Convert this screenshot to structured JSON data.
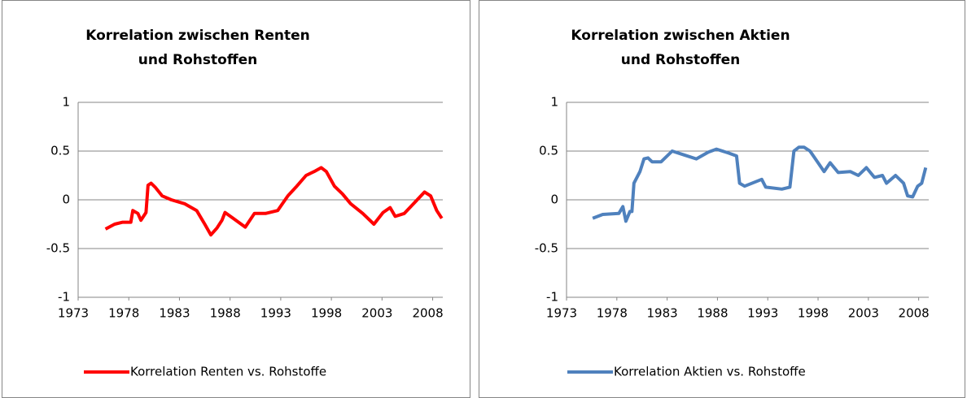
{
  "chart_data": [
    {
      "type": "line",
      "title": "Korrelation zwischen Renten und Rohstoffen",
      "x": [
        1975.7,
        1976.6,
        1977.4,
        1978.2,
        1978.4,
        1978.9,
        1979.2,
        1979.7,
        1979.9,
        1980.2,
        1980.6,
        1981.3,
        1982.2,
        1983.5,
        1984.7,
        1985.5,
        1986.1,
        1986.7,
        1987.2,
        1987.5,
        1988.3,
        1989.5,
        1990.4,
        1991.5,
        1992.7,
        1993.7,
        1994.5,
        1995.5,
        1996.3,
        1997.0,
        1997.5,
        1998.3,
        1999.1,
        1999.9,
        2001.1,
        2002.2,
        2003.1,
        2003.8,
        2004.3,
        2005.2,
        2006.2,
        2007.2,
        2007.8,
        2008.4,
        2008.9
      ],
      "series": [
        {
          "name": "Korrelation Renten vs. Rohstoffe",
          "color": "#ff0000",
          "values": [
            -0.3,
            -0.25,
            -0.23,
            -0.23,
            -0.11,
            -0.14,
            -0.21,
            -0.13,
            0.15,
            0.17,
            0.13,
            0.04,
            0,
            -0.04,
            -0.11,
            -0.25,
            -0.36,
            -0.29,
            -0.21,
            -0.13,
            -0.19,
            -0.28,
            -0.14,
            -0.14,
            -0.11,
            0.04,
            0.13,
            0.25,
            0.29,
            0.33,
            0.29,
            0.14,
            0.06,
            -0.04,
            -0.14,
            -0.25,
            -0.13,
            -0.08,
            -0.17,
            -0.14,
            -0.03,
            0.08,
            0.04,
            -0.11,
            -0.19
          ]
        }
      ],
      "xlim": [
        1973,
        2009
      ],
      "xticks": [
        1973,
        1978,
        1983,
        1988,
        1993,
        1998,
        2003,
        2008
      ],
      "ylim": [
        -1,
        1
      ],
      "yticks": [
        -1,
        -0.5,
        0,
        0.5,
        1
      ],
      "grid": true,
      "legend": "bottom"
    },
    {
      "type": "line",
      "title": "Korrelation zwischen Aktien und Rohstoffen",
      "x": [
        1975.6,
        1976.6,
        1978.2,
        1978.6,
        1978.9,
        1979.3,
        1979.5,
        1979.7,
        1980.3,
        1980.7,
        1981.1,
        1981.5,
        1982.4,
        1983.5,
        1984.7,
        1985.9,
        1987.1,
        1987.9,
        1989.1,
        1989.9,
        1990.2,
        1990.7,
        1992.4,
        1992.8,
        1994.4,
        1995.2,
        1995.6,
        1996.1,
        1996.6,
        1997.2,
        1998.0,
        1998.6,
        1999.2,
        2000.0,
        2001.2,
        2002.0,
        2002.8,
        2003.6,
        2004.4,
        2004.8,
        2005.7,
        2006.5,
        2006.9,
        2007.4,
        2007.9,
        2008.3,
        2008.7
      ],
      "series": [
        {
          "name": "Korrelation Aktien vs. Rohstoffe",
          "color": "#4f81bd",
          "values": [
            -0.19,
            -0.15,
            -0.14,
            -0.07,
            -0.22,
            -0.12,
            -0.12,
            0.17,
            0.29,
            0.42,
            0.43,
            0.39,
            0.39,
            0.5,
            0.46,
            0.42,
            0.49,
            0.52,
            0.48,
            0.45,
            0.17,
            0.14,
            0.21,
            0.13,
            0.11,
            0.13,
            0.5,
            0.54,
            0.54,
            0.5,
            0.38,
            0.29,
            0.38,
            0.28,
            0.29,
            0.25,
            0.33,
            0.23,
            0.25,
            0.17,
            0.25,
            0.17,
            0.04,
            0.03,
            0.14,
            0.17,
            0.33
          ]
        }
      ],
      "xlim": [
        1973,
        2009
      ],
      "xticks": [
        1973,
        1978,
        1983,
        1988,
        1993,
        1998,
        2003,
        2008
      ],
      "ylim": [
        -1,
        1
      ],
      "yticks": [
        -1,
        -0.5,
        0,
        0.5,
        1
      ],
      "grid": true,
      "legend": "bottom"
    }
  ]
}
